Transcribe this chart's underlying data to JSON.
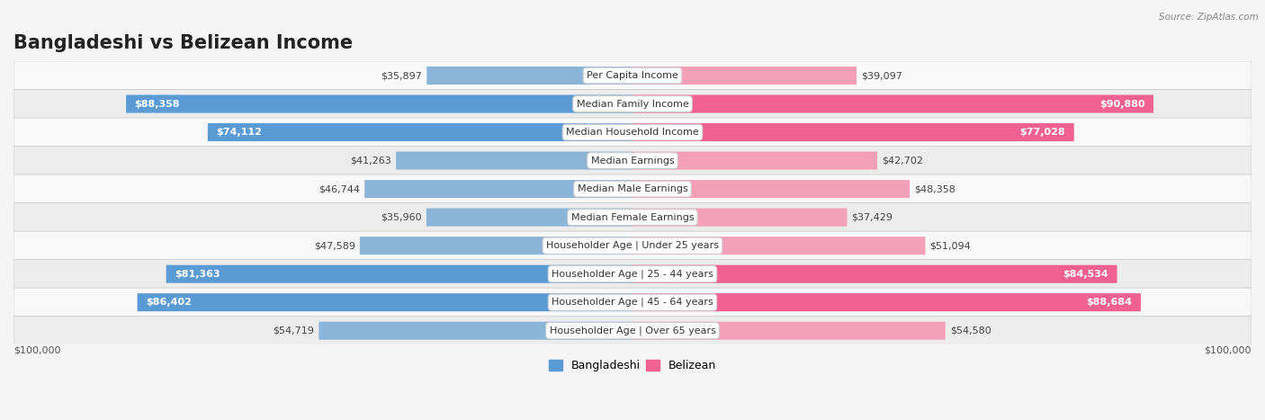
{
  "title": "Bangladeshi vs Belizean Income",
  "source": "Source: ZipAtlas.com",
  "categories": [
    "Per Capita Income",
    "Median Family Income",
    "Median Household Income",
    "Median Earnings",
    "Median Male Earnings",
    "Median Female Earnings",
    "Householder Age | Under 25 years",
    "Householder Age | 25 - 44 years",
    "Householder Age | 45 - 64 years",
    "Householder Age | Over 65 years"
  ],
  "bangladeshi_values": [
    35897,
    88358,
    74112,
    41263,
    46744,
    35960,
    47589,
    81363,
    86402,
    54719
  ],
  "belizean_values": [
    39097,
    90880,
    77028,
    42702,
    48358,
    37429,
    51094,
    84534,
    88684,
    54580
  ],
  "max_value": 100000,
  "bangladeshi_color": "#8ab4d8",
  "belizean_color": "#f4a0b8",
  "bangladeshi_color_full": "#5b9bd5",
  "belizean_color_full": "#f06090",
  "bg_color": "#f5f5f5",
  "row_bg_odd": "#ececec",
  "row_bg_even": "#f8f8f8",
  "bar_height": 0.62,
  "title_fontsize": 15,
  "label_fontsize": 8,
  "value_fontsize": 8,
  "legend_fontsize": 9,
  "axis_label": "$100,000",
  "legend_bangladeshi": "Bangladeshi",
  "legend_belizean": "Belizean",
  "full_threshold": 0.6
}
